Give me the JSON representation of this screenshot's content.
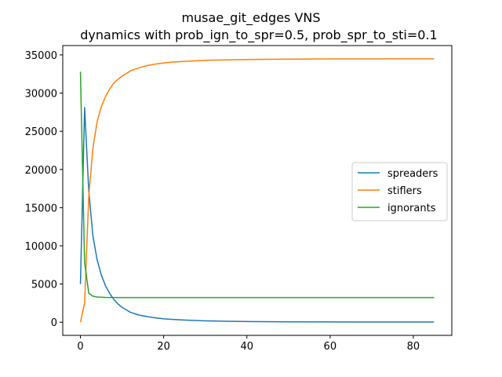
{
  "chart_data": {
    "type": "line",
    "title": "musae_git_edges VNS",
    "subtitle": "dynamics with prob_ign_to_spr=0.5, prob_spr_to_sti=0.1",
    "xlabel": "",
    "ylabel": "",
    "xlim": [
      -4.25,
      89.25
    ],
    "ylim": [
      -1725,
      36225
    ],
    "xticks": [
      0,
      20,
      40,
      60,
      80
    ],
    "yticks": [
      0,
      5000,
      10000,
      15000,
      20000,
      25000,
      30000,
      35000
    ],
    "grid": false,
    "legend_position": "center-right",
    "series": [
      {
        "name": "spreaders",
        "color": "#1f77b4",
        "x": [
          0,
          1,
          2,
          3,
          4,
          5,
          6,
          7,
          8,
          9,
          10,
          12,
          14,
          16,
          18,
          20,
          22,
          25,
          30,
          35,
          40,
          50,
          60,
          70,
          80,
          85
        ],
        "y": [
          5000,
          28100,
          17200,
          11300,
          8200,
          6200,
          4800,
          3800,
          3000,
          2400,
          1950,
          1300,
          950,
          730,
          570,
          450,
          370,
          280,
          180,
          120,
          90,
          55,
          35,
          25,
          20,
          18
        ]
      },
      {
        "name": "stiflers",
        "color": "#ff7f0e",
        "x": [
          0,
          1,
          2,
          3,
          4,
          5,
          6,
          7,
          8,
          9,
          10,
          12,
          14,
          16,
          18,
          20,
          22,
          25,
          30,
          35,
          40,
          50,
          60,
          70,
          80,
          85
        ],
        "y": [
          0,
          2500,
          16500,
          22800,
          26200,
          28200,
          29500,
          30500,
          31300,
          31800,
          32200,
          32900,
          33300,
          33600,
          33800,
          33950,
          34050,
          34150,
          34300,
          34350,
          34400,
          34450,
          34470,
          34480,
          34490,
          34490
        ]
      },
      {
        "name": "ignorants",
        "color": "#2ca02c",
        "x": [
          0,
          1,
          2,
          3,
          4,
          5,
          6,
          8,
          10,
          15,
          20,
          30,
          40,
          50,
          60,
          70,
          80,
          85
        ],
        "y": [
          32800,
          7800,
          3800,
          3400,
          3300,
          3270,
          3250,
          3240,
          3230,
          3230,
          3230,
          3230,
          3230,
          3230,
          3230,
          3230,
          3230,
          3230
        ]
      }
    ]
  }
}
